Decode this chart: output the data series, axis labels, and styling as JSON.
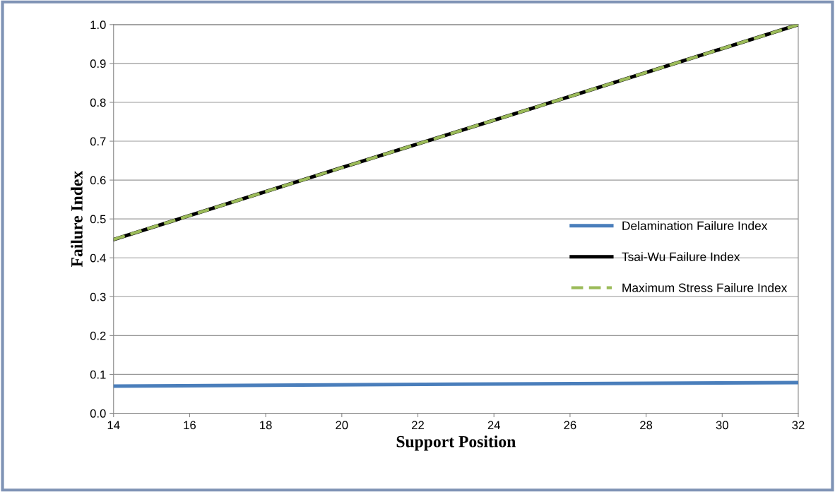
{
  "chart_data": {
    "type": "line",
    "xlabel": "Support Position",
    "ylabel": "Failure Index",
    "xlim": [
      14,
      32
    ],
    "xticks": [
      14,
      16,
      18,
      20,
      22,
      24,
      26,
      28,
      30,
      32
    ],
    "ylim": [
      0,
      1
    ],
    "yticks": [
      {
        "value": 0,
        "label": "0.0"
      },
      {
        "value": 0.1,
        "label": "0.1"
      },
      {
        "value": 0.2,
        "label": "0.2"
      },
      {
        "value": 0.3,
        "label": "0.3"
      },
      {
        "value": 0.4,
        "label": "0.4"
      },
      {
        "value": 0.5,
        "label": "0.5"
      },
      {
        "value": 0.6,
        "label": "0.6"
      },
      {
        "value": 0.7,
        "label": "0.7"
      },
      {
        "value": 0.8,
        "label": "0.8"
      },
      {
        "value": 0.9,
        "label": "0.9"
      },
      {
        "value": 1,
        "label": "1.0"
      }
    ],
    "grid": "y",
    "legend": "right",
    "marker": "none",
    "series": [
      {
        "name": "Delamination Failure Index",
        "color": "#4a7ebb",
        "x": [
          14,
          23,
          32
        ],
        "values": [
          0.07,
          0.075,
          0.079
        ],
        "line_style": "solid"
      },
      {
        "name": "Tsai-Wu Failure Index",
        "color": "#000000",
        "x": [
          14,
          20,
          26,
          32
        ],
        "values": [
          0.447,
          0.632,
          0.815,
          1.0
        ],
        "line_style": "solid"
      },
      {
        "name": "Maximum Stress Failure Index",
        "color": "#9bbb59",
        "x": [
          14,
          20,
          26,
          32
        ],
        "values": [
          0.447,
          0.632,
          0.815,
          1.0
        ],
        "line_style": "dashed"
      }
    ]
  }
}
